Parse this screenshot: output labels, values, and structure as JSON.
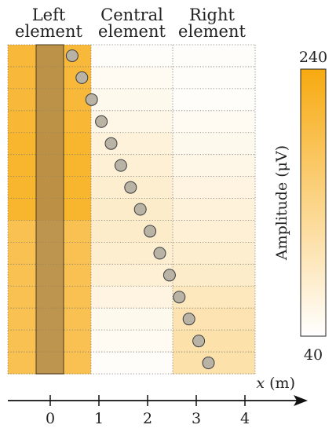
{
  "columns": [
    {
      "line1": "Left",
      "line2": "element"
    },
    {
      "line1": "Central",
      "line2": "element"
    },
    {
      "line1": "Right",
      "line2": "element"
    }
  ],
  "colorbar": {
    "label": "Amplitude (μV)",
    "max": "240",
    "min": "40",
    "max_color": "#f7aa10",
    "min_color": "#ffffff"
  },
  "axis": {
    "label_var": "x",
    "label_unit": " (m)",
    "ticks": [
      "0",
      "1",
      "2",
      "3",
      "4"
    ]
  },
  "rows": 15,
  "amplitudes": {
    "left": [
      205,
      205,
      205,
      210,
      215,
      215,
      215,
      215,
      185,
      185,
      185,
      185,
      185,
      185,
      185
    ],
    "central": [
      45,
      50,
      55,
      60,
      70,
      75,
      80,
      85,
      85,
      80,
      75,
      65,
      55,
      50,
      45
    ],
    "right": [
      45,
      45,
      45,
      50,
      55,
      60,
      65,
      70,
      75,
      80,
      85,
      95,
      105,
      110,
      110
    ]
  },
  "probe_positions_m": [
    0.45,
    0.65,
    0.85,
    1.05,
    1.25,
    1.45,
    1.65,
    1.85,
    2.05,
    2.25,
    2.45,
    2.65,
    2.85,
    3.05,
    3.25
  ],
  "colors": {
    "band": "#a8864e",
    "circle_fill": "#b9b3a6",
    "circle_stroke": "#3a3a3a"
  }
}
